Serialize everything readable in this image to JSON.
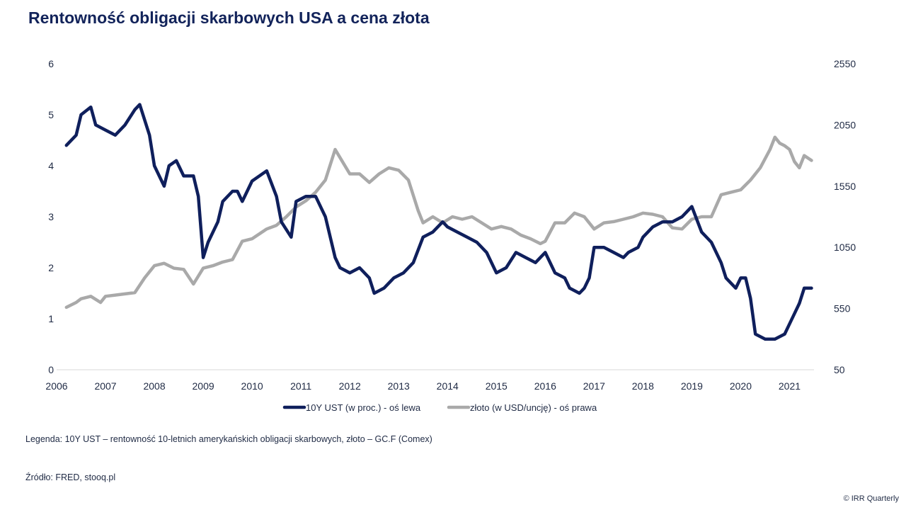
{
  "page": {
    "title": "Rentowność obligacji skarbowych USA a cena złota",
    "legend_note": "Legenda: 10Y UST – rentowność 10-letnich amerykańskich obligacji skarbowych, złoto – GC.F (Comex)",
    "source": "Źródło: FRED, stooq.pl",
    "copyright": "© IRR Quarterly"
  },
  "colors": {
    "ust": "#0f1f5c",
    "gold": "#a9a9a9",
    "axis": "#d9d9d9",
    "title": "#12235a"
  },
  "chart_data": {
    "type": "line",
    "title": "Rentowność obligacji skarbowych USA a cena złota",
    "x_range": [
      2006,
      2021.5
    ],
    "x_ticks": [
      "2006",
      "2007",
      "2008",
      "2009",
      "2010",
      "2011",
      "2012",
      "2013",
      "2014",
      "2015",
      "2016",
      "2017",
      "2018",
      "2019",
      "2020",
      "2021"
    ],
    "y_left": {
      "range": [
        0,
        6
      ],
      "ticks": [
        "0",
        "1",
        "2",
        "3",
        "4",
        "5",
        "6"
      ]
    },
    "y_right": {
      "range": [
        50,
        2550
      ],
      "ticks": [
        "50",
        "550",
        "1050",
        "1550",
        "2050",
        "2550"
      ]
    },
    "series": [
      {
        "name": "10Y UST (w proc.) - oś lewa",
        "axis": "left",
        "x": [
          2006.2,
          2006.4,
          2006.5,
          2006.7,
          2006.8,
          2007.0,
          2007.2,
          2007.4,
          2007.6,
          2007.7,
          2007.9,
          2008.0,
          2008.2,
          2008.3,
          2008.45,
          2008.6,
          2008.8,
          2008.9,
          2009.0,
          2009.1,
          2009.3,
          2009.4,
          2009.6,
          2009.7,
          2009.8,
          2010.0,
          2010.3,
          2010.5,
          2010.6,
          2010.8,
          2010.9,
          2011.1,
          2011.3,
          2011.5,
          2011.7,
          2011.8,
          2012.0,
          2012.2,
          2012.4,
          2012.5,
          2012.7,
          2012.9,
          2013.1,
          2013.3,
          2013.5,
          2013.7,
          2013.9,
          2014.0,
          2014.2,
          2014.4,
          2014.6,
          2014.8,
          2015.0,
          2015.2,
          2015.4,
          2015.6,
          2015.8,
          2015.9,
          2016.0,
          2016.2,
          2016.4,
          2016.5,
          2016.7,
          2016.8,
          2016.9,
          2017.0,
          2017.2,
          2017.4,
          2017.6,
          2017.7,
          2017.9,
          2018.0,
          2018.2,
          2018.4,
          2018.6,
          2018.8,
          2018.9,
          2019.0,
          2019.2,
          2019.4,
          2019.6,
          2019.7,
          2019.9,
          2020.0,
          2020.1,
          2020.2,
          2020.3,
          2020.5,
          2020.7,
          2020.9,
          2021.0,
          2021.1,
          2021.2,
          2021.3,
          2021.45
        ],
        "values": [
          4.4,
          4.6,
          5.0,
          5.15,
          4.8,
          4.7,
          4.6,
          4.8,
          5.1,
          5.2,
          4.6,
          4.0,
          3.6,
          4.0,
          4.1,
          3.8,
          3.8,
          3.4,
          2.2,
          2.5,
          2.9,
          3.3,
          3.5,
          3.5,
          3.3,
          3.7,
          3.9,
          3.4,
          2.9,
          2.6,
          3.3,
          3.4,
          3.4,
          3.0,
          2.2,
          2.0,
          1.9,
          2.0,
          1.8,
          1.5,
          1.6,
          1.8,
          1.9,
          2.1,
          2.6,
          2.7,
          2.9,
          2.8,
          2.7,
          2.6,
          2.5,
          2.3,
          1.9,
          2.0,
          2.3,
          2.2,
          2.1,
          2.2,
          2.3,
          1.9,
          1.8,
          1.6,
          1.5,
          1.6,
          1.8,
          2.4,
          2.4,
          2.3,
          2.2,
          2.3,
          2.4,
          2.6,
          2.8,
          2.9,
          2.9,
          3.0,
          3.1,
          3.2,
          2.7,
          2.5,
          2.1,
          1.8,
          1.6,
          1.8,
          1.8,
          1.4,
          0.7,
          0.6,
          0.6,
          0.7,
          0.9,
          1.1,
          1.3,
          1.6,
          1.6
        ]
      },
      {
        "name": "złoto (w USD/uncję) - oś prawa",
        "axis": "right",
        "x": [
          2006.2,
          2006.4,
          2006.5,
          2006.7,
          2006.9,
          2007.0,
          2007.2,
          2007.4,
          2007.6,
          2007.8,
          2008.0,
          2008.2,
          2008.4,
          2008.6,
          2008.8,
          2009.0,
          2009.2,
          2009.4,
          2009.6,
          2009.8,
          2010.0,
          2010.3,
          2010.5,
          2010.7,
          2010.9,
          2011.1,
          2011.3,
          2011.5,
          2011.7,
          2011.85,
          2012.0,
          2012.2,
          2012.4,
          2012.6,
          2012.8,
          2013.0,
          2013.2,
          2013.4,
          2013.5,
          2013.7,
          2013.9,
          2014.1,
          2014.3,
          2014.5,
          2014.7,
          2014.9,
          2015.1,
          2015.3,
          2015.5,
          2015.7,
          2015.9,
          2016.0,
          2016.2,
          2016.4,
          2016.6,
          2016.8,
          2017.0,
          2017.2,
          2017.4,
          2017.6,
          2017.8,
          2018.0,
          2018.2,
          2018.4,
          2018.6,
          2018.8,
          2019.0,
          2019.2,
          2019.4,
          2019.6,
          2019.8,
          2020.0,
          2020.2,
          2020.4,
          2020.6,
          2020.7,
          2020.8,
          2020.9,
          2021.0,
          2021.1,
          2021.2,
          2021.3,
          2021.45
        ],
        "values": [
          560,
          600,
          630,
          650,
          600,
          650,
          660,
          670,
          680,
          800,
          900,
          920,
          880,
          870,
          750,
          880,
          900,
          930,
          950,
          1100,
          1120,
          1200,
          1230,
          1300,
          1380,
          1430,
          1500,
          1600,
          1850,
          1750,
          1650,
          1650,
          1580,
          1650,
          1700,
          1680,
          1600,
          1350,
          1250,
          1300,
          1250,
          1300,
          1280,
          1300,
          1250,
          1200,
          1220,
          1200,
          1150,
          1120,
          1080,
          1100,
          1250,
          1250,
          1330,
          1300,
          1200,
          1250,
          1260,
          1280,
          1300,
          1330,
          1320,
          1300,
          1210,
          1200,
          1280,
          1300,
          1300,
          1480,
          1500,
          1520,
          1600,
          1700,
          1850,
          1950,
          1900,
          1880,
          1850,
          1750,
          1700,
          1800,
          1760
        ]
      }
    ]
  }
}
